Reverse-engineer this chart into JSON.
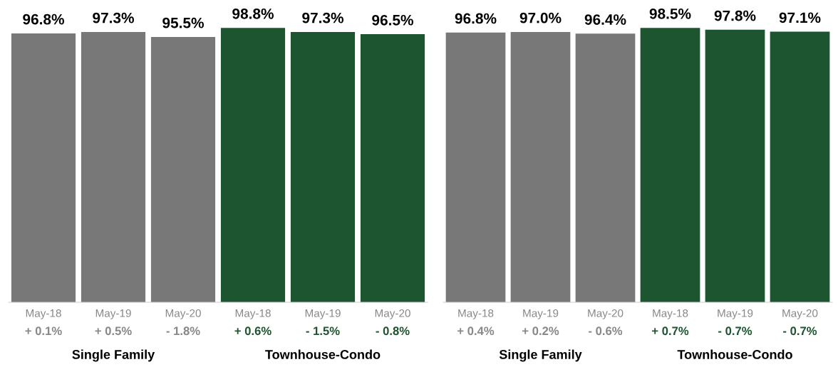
{
  "chart_data": [
    {
      "type": "bar",
      "categories": [
        "May-18\n+ 0.1%",
        "May-19\n+ 0.5%",
        "May-20\n- 1.8%",
        "May-18\n+ 0.6%",
        "May-19\n- 1.5%",
        "May-20\n- 0.8%"
      ],
      "values": [
        96.8,
        97.3,
        95.5,
        98.8,
        97.3,
        96.5
      ],
      "value_labels": [
        "96.8%",
        "97.3%",
        "95.5%",
        "98.8%",
        "97.3%",
        "96.5%"
      ],
      "colors": [
        "#777877",
        "#777877",
        "#777877",
        "#1d5530",
        "#1d5530",
        "#1d5530"
      ],
      "tick_labels": "x",
      "annotations": [
        "Single Family",
        "Townhouse-Condo"
      ]
    },
    {
      "type": "bar",
      "categories": [
        "May-18\n+ 0.4%",
        "May-19\n+ 0.2%",
        "May-20\n- 0.6%",
        "May-18\n+ 0.7%",
        "May-19\n- 0.7%",
        "May-20\n- 0.7%"
      ],
      "values": [
        96.8,
        97.0,
        96.4,
        98.5,
        97.8,
        97.1
      ],
      "value_labels": [
        "96.8%",
        "97.0%",
        "96.4%",
        "98.5%",
        "97.8%",
        "97.1%"
      ],
      "colors": [
        "#777877",
        "#777877",
        "#777877",
        "#1d5530",
        "#1d5530",
        "#1d5530"
      ],
      "tick_labels": "x",
      "annotations": [
        "Single Family",
        "Townhouse-Condo"
      ]
    }
  ]
}
